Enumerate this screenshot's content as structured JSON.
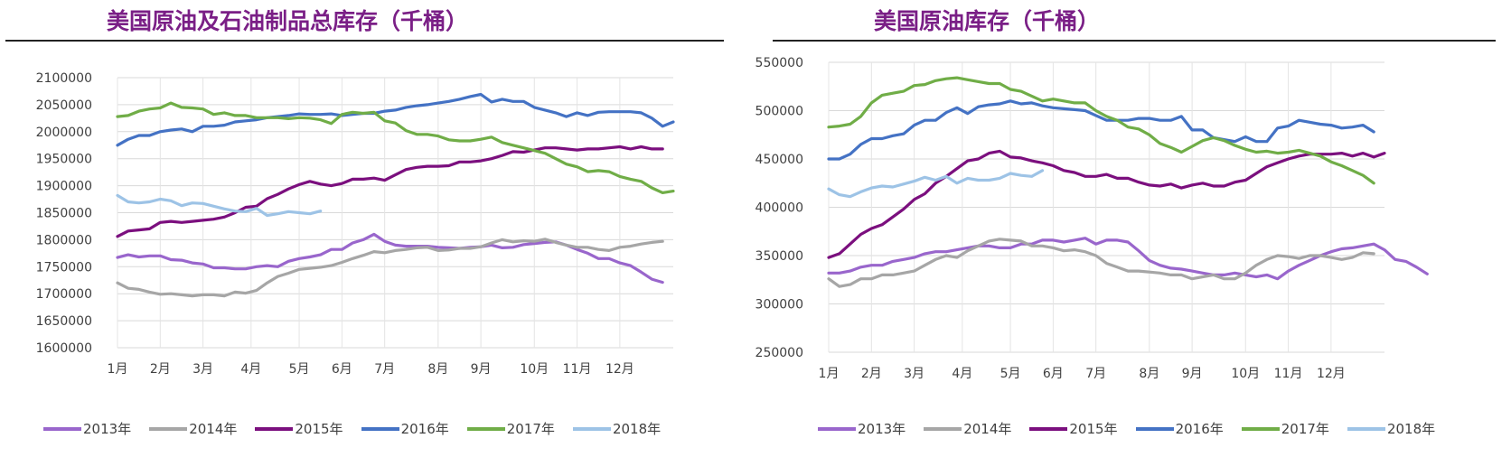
{
  "colors": {
    "title": "#7a1f86",
    "s2013": "#9966cc",
    "s2014": "#a6a6a6",
    "s2015": "#7b0f7e",
    "s2016": "#4472c4",
    "s2017": "#70ad47",
    "s2018": "#9dc3e6"
  },
  "chart_data": [
    {
      "type": "line",
      "title": "美国原油及石油制品总库存（千桶）",
      "xlabel": "",
      "ylabel": "",
      "ylim": [
        1600000,
        2100000
      ],
      "yticks": [
        1600000,
        1650000,
        1700000,
        1750000,
        1800000,
        1850000,
        1900000,
        1950000,
        2000000,
        2050000,
        2100000
      ],
      "ytick_labels": [
        "1600000",
        "1650000",
        "1700000",
        "1750000",
        "1800000",
        "1850000",
        "1900000",
        "1950000",
        "2000000",
        "2050000",
        "2100000"
      ],
      "x_ticks": [
        {
          "w": 1,
          "label": "1月"
        },
        {
          "w": 5,
          "label": "2月"
        },
        {
          "w": 9,
          "label": "3月"
        },
        {
          "w": 13.5,
          "label": "4月"
        },
        {
          "w": 18,
          "label": "5月"
        },
        {
          "w": 22,
          "label": "6月"
        },
        {
          "w": 26,
          "label": "7月"
        },
        {
          "w": 31,
          "label": "8月"
        },
        {
          "w": 35,
          "label": "9月"
        },
        {
          "w": 40,
          "label": "10月"
        },
        {
          "w": 44,
          "label": "11月"
        },
        {
          "w": 48,
          "label": "12月"
        }
      ],
      "xlim": [
        1,
        53
      ],
      "grid": true,
      "legend": "bottom",
      "series": [
        {
          "name": "2013年",
          "color_key": "s2013",
          "values": [
            1767000,
            1772000,
            1768000,
            1770000,
            1770000,
            1763000,
            1762000,
            1757000,
            1755000,
            1748000,
            1748000,
            1746000,
            1746000,
            1750000,
            1752000,
            1750000,
            1760000,
            1765000,
            1768000,
            1772000,
            1782000,
            1782000,
            1794000,
            1800000,
            1810000,
            1797000,
            1790000,
            1788000,
            1788000,
            1788000,
            1786000,
            1785000,
            1784000,
            1786000,
            1787000,
            1790000,
            1785000,
            1786000,
            1791000,
            1793000,
            1795000,
            1796000,
            1790000,
            1782000,
            1775000,
            1765000,
            1765000,
            1757000,
            1752000,
            1740000,
            1727000,
            1721000
          ]
        },
        {
          "name": "2014年",
          "color_key": "s2014",
          "values": [
            1720000,
            1710000,
            1708000,
            1703000,
            1699000,
            1700000,
            1698000,
            1696000,
            1698000,
            1698000,
            1696000,
            1703000,
            1701000,
            1706000,
            1720000,
            1732000,
            1738000,
            1745000,
            1747000,
            1749000,
            1752000,
            1758000,
            1765000,
            1771000,
            1778000,
            1776000,
            1780000,
            1782000,
            1785000,
            1786000,
            1780000,
            1781000,
            1784000,
            1784000,
            1787000,
            1794000,
            1800000,
            1796000,
            1798000,
            1797000,
            1801000,
            1795000,
            1790000,
            1786000,
            1786000,
            1782000,
            1780000,
            1786000,
            1788000,
            1792000,
            1795000,
            1797000
          ]
        },
        {
          "name": "2015年",
          "color_key": "s2015",
          "values": [
            1806000,
            1816000,
            1818000,
            1820000,
            1832000,
            1834000,
            1832000,
            1834000,
            1836000,
            1838000,
            1842000,
            1850000,
            1860000,
            1862000,
            1876000,
            1884000,
            1894000,
            1902000,
            1908000,
            1903000,
            1900000,
            1904000,
            1912000,
            1912000,
            1914000,
            1910000,
            1920000,
            1930000,
            1934000,
            1936000,
            1936000,
            1937000,
            1944000,
            1944000,
            1946000,
            1950000,
            1956000,
            1963000,
            1962000,
            1966000,
            1970000,
            1970000,
            1968000,
            1966000,
            1968000,
            1968000,
            1970000,
            1972000,
            1968000,
            1972000,
            1968000,
            1968000
          ]
        },
        {
          "name": "2016年",
          "color_key": "s2016",
          "values": [
            1975000,
            1986000,
            1993000,
            1993000,
            2000000,
            2003000,
            2005000,
            2000000,
            2010000,
            2010000,
            2012000,
            2018000,
            2020000,
            2022000,
            2026000,
            2028000,
            2030000,
            2033000,
            2032000,
            2032000,
            2033000,
            2030000,
            2032000,
            2034000,
            2034000,
            2038000,
            2040000,
            2045000,
            2048000,
            2050000,
            2053000,
            2056000,
            2060000,
            2065000,
            2069000,
            2055000,
            2060000,
            2056000,
            2056000,
            2045000,
            2040000,
            2035000,
            2028000,
            2035000,
            2030000,
            2036000,
            2037000,
            2037000,
            2037000,
            2035000,
            2025000,
            2010000,
            2018000
          ]
        },
        {
          "name": "2017年",
          "color_key": "s2017",
          "values": [
            2028000,
            2030000,
            2038000,
            2042000,
            2044000,
            2053000,
            2045000,
            2044000,
            2042000,
            2032000,
            2035000,
            2030000,
            2030000,
            2026000,
            2026000,
            2026000,
            2024000,
            2026000,
            2025000,
            2022000,
            2015000,
            2032000,
            2036000,
            2034000,
            2036000,
            2020000,
            2016000,
            2002000,
            1995000,
            1995000,
            1992000,
            1985000,
            1983000,
            1983000,
            1986000,
            1990000,
            1980000,
            1975000,
            1970000,
            1965000,
            1960000,
            1950000,
            1940000,
            1935000,
            1926000,
            1928000,
            1926000,
            1917000,
            1912000,
            1908000,
            1896000,
            1887000,
            1890000
          ]
        },
        {
          "name": "2018年",
          "color_key": "s2018",
          "values": [
            1882000,
            1870000,
            1868000,
            1870000,
            1875000,
            1872000,
            1863000,
            1868000,
            1867000,
            1862000,
            1857000,
            1853000,
            1852000,
            1858000,
            1845000,
            1848000,
            1852000,
            1850000,
            1848000,
            1853000
          ]
        }
      ]
    },
    {
      "type": "line",
      "title": "美国原油库存（千桶）",
      "xlabel": "",
      "ylabel": "",
      "ylim": [
        250000,
        550000
      ],
      "yticks": [
        250000,
        300000,
        350000,
        400000,
        450000,
        500000,
        550000
      ],
      "ytick_labels": [
        "250000",
        "300000",
        "350000",
        "400000",
        "450000",
        "500000",
        "550000"
      ],
      "x_ticks": [
        {
          "w": 1,
          "label": "1月"
        },
        {
          "w": 5,
          "label": "2月"
        },
        {
          "w": 9,
          "label": "3月"
        },
        {
          "w": 13.5,
          "label": "4月"
        },
        {
          "w": 18,
          "label": "5月"
        },
        {
          "w": 22,
          "label": "6月"
        },
        {
          "w": 26,
          "label": "7月"
        },
        {
          "w": 31,
          "label": "8月"
        },
        {
          "w": 35,
          "label": "9月"
        },
        {
          "w": 40,
          "label": "10月"
        },
        {
          "w": 44,
          "label": "11月"
        },
        {
          "w": 48,
          "label": "12月"
        }
      ],
      "xlim": [
        1,
        53
      ],
      "grid": true,
      "legend": "bottom",
      "series": [
        {
          "name": "2013年",
          "color_key": "s2013",
          "values": [
            332000,
            332000,
            334000,
            338000,
            340000,
            340000,
            344000,
            346000,
            348000,
            352000,
            354000,
            354000,
            356000,
            358000,
            360000,
            360000,
            358000,
            358000,
            362000,
            362000,
            366000,
            366000,
            364000,
            366000,
            368000,
            362000,
            366000,
            366000,
            364000,
            355000,
            345000,
            340000,
            337000,
            336000,
            334000,
            332000,
            330000,
            330000,
            332000,
            330000,
            328000,
            330000,
            326000,
            334000,
            340000,
            345000,
            350000,
            354000,
            357000,
            358000,
            360000,
            362000,
            356000,
            346000,
            344000,
            338000,
            331000
          ]
        },
        {
          "name": "2014年",
          "color_key": "s2014",
          "values": [
            326000,
            318000,
            320000,
            326000,
            326000,
            330000,
            330000,
            332000,
            334000,
            340000,
            346000,
            350000,
            348000,
            355000,
            360000,
            365000,
            367000,
            366000,
            365000,
            360000,
            360000,
            358000,
            355000,
            356000,
            354000,
            350000,
            342000,
            338000,
            334000,
            334000,
            333000,
            332000,
            330000,
            330000,
            326000,
            328000,
            330000,
            326000,
            326000,
            332000,
            340000,
            346000,
            350000,
            349000,
            347000,
            350000,
            350000,
            348000,
            346000,
            348000,
            353000,
            352000
          ]
        },
        {
          "name": "2015年",
          "color_key": "s2015",
          "values": [
            348000,
            352000,
            362000,
            372000,
            378000,
            382000,
            390000,
            398000,
            408000,
            414000,
            425000,
            432000,
            440000,
            448000,
            450000,
            456000,
            458000,
            452000,
            451000,
            448000,
            446000,
            443000,
            438000,
            436000,
            432000,
            432000,
            434000,
            430000,
            430000,
            426000,
            423000,
            422000,
            424000,
            420000,
            423000,
            425000,
            422000,
            422000,
            426000,
            428000,
            435000,
            442000,
            446000,
            450000,
            453000,
            455000,
            455000,
            455000,
            456000,
            453000,
            456000,
            452000,
            456000
          ]
        },
        {
          "name": "2016年",
          "color_key": "s2016",
          "values": [
            450000,
            450000,
            455000,
            465000,
            471000,
            471000,
            474000,
            476000,
            485000,
            490000,
            490000,
            498000,
            503000,
            497000,
            504000,
            506000,
            507000,
            510000,
            507000,
            508000,
            505000,
            503000,
            502000,
            501000,
            500000,
            495000,
            490000,
            490000,
            490000,
            492000,
            492000,
            490000,
            490000,
            494000,
            480000,
            480000,
            472000,
            470000,
            468000,
            473000,
            468000,
            468000,
            482000,
            484000,
            490000,
            488000,
            486000,
            485000,
            482000,
            483000,
            485000,
            478000
          ]
        },
        {
          "name": "2017年",
          "color_key": "s2017",
          "values": [
            483000,
            484000,
            486000,
            494000,
            508000,
            516000,
            518000,
            520000,
            526000,
            527000,
            531000,
            533000,
            534000,
            532000,
            530000,
            528000,
            528000,
            522000,
            520000,
            515000,
            510000,
            512000,
            510000,
            508000,
            508000,
            500000,
            494000,
            490000,
            483000,
            481000,
            475000,
            466000,
            462000,
            457000,
            463000,
            469000,
            472000,
            469000,
            464000,
            460000,
            457000,
            458000,
            456000,
            457000,
            459000,
            456000,
            453000,
            447000,
            443000,
            438000,
            433000,
            425000
          ]
        },
        {
          "name": "2018年",
          "color_key": "s2018",
          "values": [
            419000,
            413000,
            411000,
            416000,
            420000,
            422000,
            421000,
            424000,
            427000,
            431000,
            428000,
            432000,
            425000,
            430000,
            428000,
            428000,
            430000,
            435000,
            433000,
            432000,
            438000
          ]
        }
      ]
    }
  ]
}
